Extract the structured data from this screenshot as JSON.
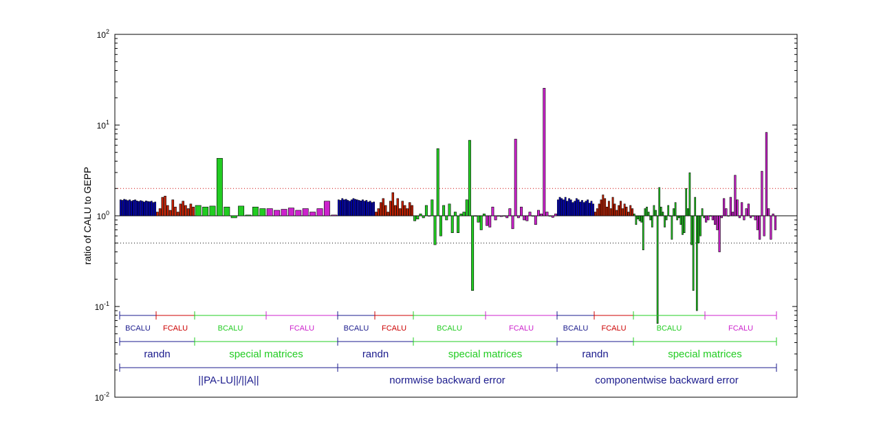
{
  "chart_data": {
    "type": "bar",
    "scale": "log",
    "ylabel": "ratio of CALU to GEPP",
    "ylim": [
      0.01,
      100
    ],
    "yticks": [
      {
        "base": "10",
        "exp": "-2"
      },
      {
        "base": "10",
        "exp": "-1"
      },
      {
        "base": "10",
        "exp": "0"
      },
      {
        "base": "10",
        "exp": "1"
      },
      {
        "base": "10",
        "exp": "2"
      }
    ],
    "reference_lines": [
      2,
      1,
      0.5
    ],
    "colors": {
      "BCALU_randn": "#0000cc",
      "FCALU_randn": "#cc2200",
      "BCALU_special": "#22cc22",
      "FCALU_special": "#cc22cc",
      "label_blue": "#1a1a8c",
      "label_red": "#cc0000",
      "label_green": "#22cc22",
      "label_magenta": "#cc22cc"
    },
    "series": [
      {
        "values": [
          1.5,
          1.48,
          1.52,
          1.5,
          1.47,
          1.5,
          1.45,
          1.48,
          1.5,
          1.46,
          1.44,
          1.47,
          1.45,
          1.42,
          1.46,
          1.44,
          1.43,
          1.45,
          1.4,
          1.42
        ]
      },
      {
        "values": [
          1.1,
          1.2,
          1.6,
          1.65,
          1.3,
          1.15,
          1.5,
          1.25,
          1.1,
          1.35,
          1.45,
          1.3,
          1.2,
          1.35,
          1.25
        ]
      },
      {
        "values": [
          1.3,
          1.25,
          1.28,
          4.3,
          1.25,
          0.95,
          1.28,
          1.02,
          1.25,
          1.2
        ]
      },
      {
        "values": [
          1.2,
          1.15,
          1.18,
          1.22,
          1.15,
          1.2,
          1.1,
          1.2,
          1.45,
          1.02
        ]
      },
      {
        "values": [
          1.5,
          1.48,
          1.55,
          1.5,
          1.52,
          1.48,
          1.45,
          1.5,
          1.55,
          1.52,
          1.5,
          1.48,
          1.46,
          1.5,
          1.45,
          1.48,
          1.42,
          1.45,
          1.4,
          1.42
        ]
      },
      {
        "values": [
          1.1,
          1.2,
          1.4,
          1.55,
          1.3,
          1.1,
          1.45,
          1.8,
          1.3,
          1.55,
          1.2,
          1.45,
          1.3,
          1.2,
          1.4,
          1.3
        ]
      },
      {
        "values": [
          0.88,
          0.92,
          1.05,
          0.95,
          1.3,
          1.0,
          1.5,
          0.48,
          5.5,
          0.6,
          1.3,
          0.9,
          1.35,
          0.65,
          1.1,
          0.65,
          1.05,
          1.1,
          1.5,
          6.8,
          0.15,
          1.0,
          0.85,
          0.7,
          1.05
        ]
      },
      {
        "values": [
          0.78,
          0.75,
          1.25,
          0.9,
          1.0,
          0.98,
          1.0,
          0.95,
          1.2,
          0.72,
          7.0,
          0.95,
          1.25,
          0.9,
          0.88,
          1.1,
          1.0,
          0.8,
          1.15,
          1.05,
          25.5,
          1.1,
          1.0,
          0.96,
          1.05
        ]
      },
      {
        "values": [
          1.5,
          1.6,
          1.55,
          1.5,
          1.6,
          1.45,
          1.55,
          1.5,
          1.4,
          1.45,
          1.55,
          1.5,
          1.42,
          1.48,
          1.4,
          1.45,
          1.5,
          1.38,
          1.45,
          1.35
        ]
      },
      {
        "values": [
          1.1,
          1.2,
          1.35,
          1.5,
          1.7,
          1.55,
          1.25,
          1.45,
          1.2,
          1.6,
          1.35,
          1.15,
          1.3,
          1.45,
          1.2,
          1.35,
          1.25,
          1.1,
          1.3,
          1.2
        ]
      },
      {
        "values": [
          1.05,
          0.8,
          0.92,
          0.88,
          0.85,
          0.42,
          1.2,
          1.25,
          1.1,
          0.9,
          0.75,
          1.3,
          1.15,
          0.065,
          2.05,
          1.25,
          1.1,
          0.75,
          0.9,
          1.3,
          1.0,
          0.55,
          1.2,
          1.4,
          0.9,
          0.95,
          0.8,
          0.62,
          0.65,
          2.0,
          1.2,
          2.98,
          0.48,
          0.15,
          1.6,
          0.09,
          0.5,
          0.6,
          1.2,
          0.95
        ]
      },
      {
        "values": [
          0.85,
          0.9,
          1.0,
          0.9,
          0.8,
          0.7,
          0.4,
          0.95,
          1.55,
          1.2,
          1.0,
          1.6,
          1.1,
          2.8,
          1.5,
          0.95,
          1.4,
          0.9,
          1.2,
          1.35,
          0.95,
          1.0,
          0.9,
          0.7,
          0.55,
          3.1,
          0.6,
          8.3,
          1.2,
          0.55,
          1.05,
          0.7
        ]
      }
    ],
    "bracket_rows": [
      [
        {
          "label": "BCALU",
          "color": "#1a1a8c"
        },
        {
          "label": "FCALU",
          "color": "#cc0000"
        },
        {
          "label": "BCALU",
          "color": "#22cc22"
        },
        {
          "label": "FCALU",
          "color": "#cc22cc"
        },
        {
          "label": "BCALU",
          "color": "#1a1a8c"
        },
        {
          "label": "FCALU",
          "color": "#cc0000"
        },
        {
          "label": "BCALU",
          "color": "#22cc22"
        },
        {
          "label": "FCALU",
          "color": "#cc22cc"
        },
        {
          "label": "BCALU",
          "color": "#1a1a8c"
        },
        {
          "label": "FCALU",
          "color": "#cc0000"
        },
        {
          "label": "BCALU",
          "color": "#22cc22"
        },
        {
          "label": "FCALU",
          "color": "#cc22cc"
        }
      ],
      [
        {
          "label": "randn",
          "color": "#1a1a8c"
        },
        {
          "label": "special matrices",
          "color": "#22cc22"
        },
        {
          "label": "randn",
          "color": "#1a1a8c"
        },
        {
          "label": "special matrices",
          "color": "#22cc22"
        },
        {
          "label": "randn",
          "color": "#1a1a8c"
        },
        {
          "label": "special matrices",
          "color": "#22cc22"
        }
      ],
      [
        {
          "label": "||PA-LU||/||A||",
          "color": "#1a1a8c"
        },
        {
          "label": "normwise backward error",
          "color": "#1a1a8c"
        },
        {
          "label": "componentwise backward error",
          "color": "#1a1a8c"
        }
      ]
    ]
  }
}
